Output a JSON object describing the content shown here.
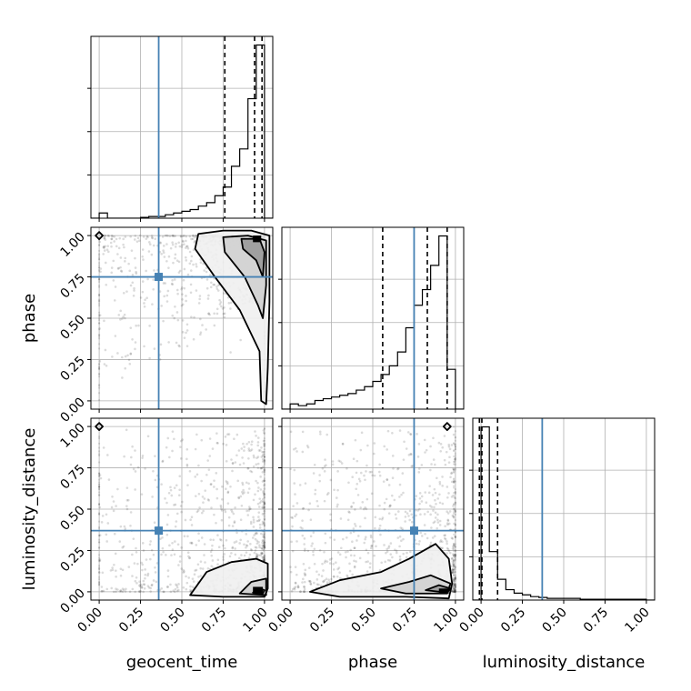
{
  "chart_data": {
    "type": "corner",
    "params": [
      "geocent_time",
      "phase",
      "luminosity_distance"
    ],
    "axis_labels": [
      "geocent_time",
      "phase",
      "luminosity_distance"
    ],
    "ticks": [
      "0.00",
      "0.25",
      "0.50",
      "0.75",
      "1.00"
    ],
    "truth_color": "#4682b4",
    "truths": {
      "geocent_time": 0.36,
      "phase": 0.75,
      "luminosity_distance": 0.37
    },
    "histograms": {
      "geocent_time": {
        "xlim": [
          -0.05,
          1.05
        ],
        "edges": [
          -0.05,
          0.0,
          0.05,
          0.1,
          0.15,
          0.2,
          0.25,
          0.3,
          0.35,
          0.4,
          0.45,
          0.5,
          0.55,
          0.6,
          0.65,
          0.7,
          0.75,
          0.8,
          0.85,
          0.9,
          0.95,
          1.0,
          1.05
        ],
        "counts": [
          0,
          0.03,
          0,
          0,
          0,
          0,
          0.005,
          0.01,
          0.01,
          0.02,
          0.03,
          0.04,
          0.05,
          0.07,
          0.09,
          0.13,
          0.18,
          0.3,
          0.4,
          0.69,
          1.0,
          0
        ],
        "quantiles": [
          0.76,
          0.94,
          0.985
        ]
      },
      "phase": {
        "xlim": [
          -0.05,
          1.05
        ],
        "edges": [
          -0.05,
          0.0,
          0.05,
          0.1,
          0.15,
          0.2,
          0.25,
          0.3,
          0.35,
          0.4,
          0.45,
          0.5,
          0.55,
          0.6,
          0.65,
          0.7,
          0.75,
          0.8,
          0.85,
          0.9,
          0.95,
          1.0,
          1.05
        ],
        "counts": [
          0,
          0.03,
          0.02,
          0.03,
          0.05,
          0.06,
          0.07,
          0.08,
          0.09,
          0.11,
          0.13,
          0.16,
          0.2,
          0.25,
          0.33,
          0.47,
          0.6,
          0.69,
          0.83,
          1.0,
          0.23,
          0
        ],
        "quantiles": [
          0.56,
          0.83,
          0.95
        ]
      },
      "luminosity_distance": {
        "xlim": [
          -0.05,
          1.05
        ],
        "edges": [
          -0.05,
          0.0,
          0.05,
          0.1,
          0.15,
          0.2,
          0.25,
          0.3,
          0.35,
          0.4,
          0.45,
          0.5,
          0.55,
          0.6,
          0.65,
          0.7,
          0.75,
          0.8,
          0.85,
          0.9,
          0.95,
          1.0,
          1.05
        ],
        "counts": [
          0,
          1.0,
          0.28,
          0.12,
          0.06,
          0.04,
          0.03,
          0.02,
          0.015,
          0.01,
          0.01,
          0.01,
          0.01,
          0.005,
          0.005,
          0.005,
          0.005,
          0.005,
          0.005,
          0.005,
          0.005,
          0
        ],
        "quantiles": [
          -0.01,
          0.005,
          0.1
        ]
      }
    },
    "pairs": [
      {
        "x": "geocent_time",
        "y": "phase"
      },
      {
        "x": "geocent_time",
        "y": "luminosity_distance"
      },
      {
        "x": "phase",
        "y": "luminosity_distance"
      }
    ],
    "grid": true
  }
}
